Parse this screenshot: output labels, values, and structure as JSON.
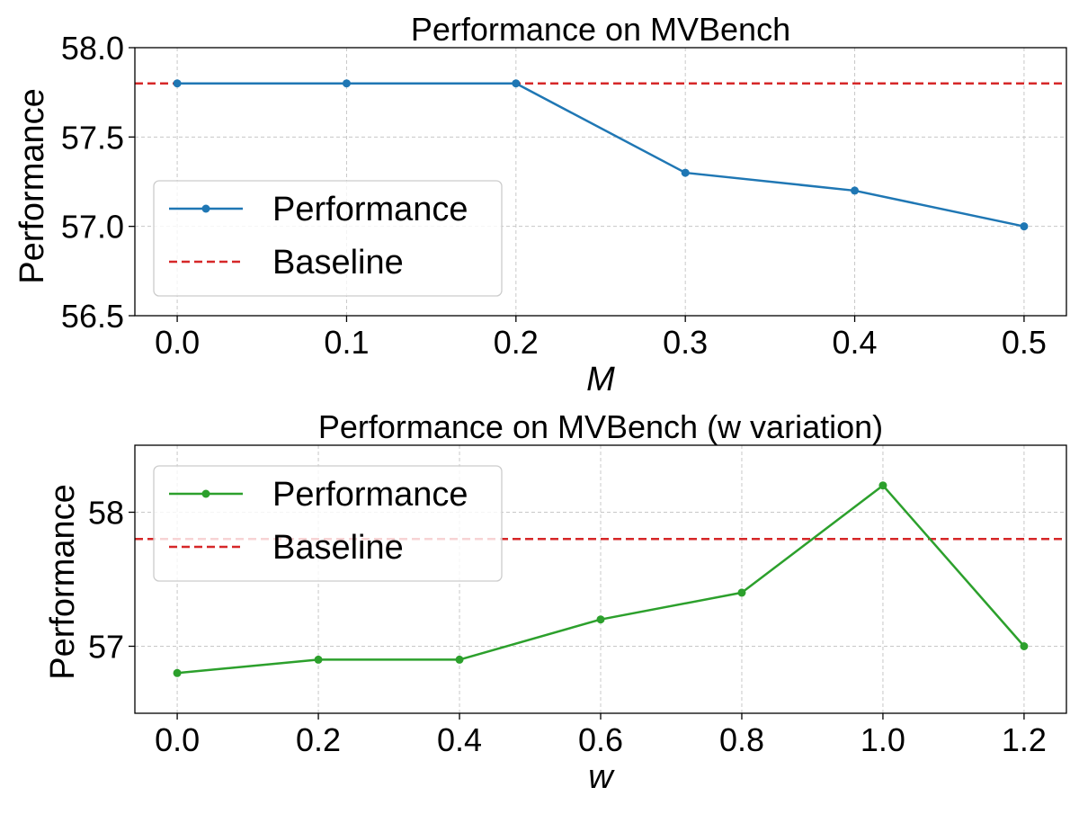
{
  "chart_data": [
    {
      "type": "line",
      "title": "Performance on MVBench",
      "xlabel": "M",
      "ylabel": "Performance",
      "x": [
        0.0,
        0.1,
        0.2,
        0.3,
        0.4,
        0.5
      ],
      "x_tick_labels": [
        "0.0",
        "0.1",
        "0.2",
        "0.3",
        "0.4",
        "0.5"
      ],
      "xlim": [
        -0.025,
        0.525
      ],
      "ylim": [
        56.5,
        58.0
      ],
      "y_ticks": [
        56.5,
        57.0,
        57.5,
        58.0
      ],
      "y_tick_labels": [
        "56.5",
        "57.0",
        "57.5",
        "58.0"
      ],
      "grid": true,
      "legend_position": "center-left",
      "series": [
        {
          "name": "Performance",
          "values": [
            57.8,
            57.8,
            57.8,
            57.3,
            57.2,
            57.0
          ],
          "color": "#1f77b4",
          "style": "solid-marker"
        }
      ],
      "baseline": {
        "name": "Baseline",
        "value": 57.8,
        "color": "#d62728",
        "style": "dashed"
      }
    },
    {
      "type": "line",
      "title": "Performance on MVBench (w variation)",
      "xlabel": "w",
      "ylabel": "Performance",
      "x": [
        0.0,
        0.2,
        0.4,
        0.6,
        0.8,
        1.0,
        1.2
      ],
      "x_tick_labels": [
        "0.0",
        "0.2",
        "0.4",
        "0.6",
        "0.8",
        "1.0",
        "1.2"
      ],
      "xlim": [
        -0.06,
        1.26
      ],
      "ylim": [
        56.5,
        58.5
      ],
      "y_ticks": [
        57,
        58
      ],
      "y_tick_labels": [
        "57",
        "58"
      ],
      "grid": true,
      "legend_position": "top-left",
      "series": [
        {
          "name": "Performance",
          "values": [
            56.8,
            56.9,
            56.9,
            57.2,
            57.4,
            58.2,
            57.0
          ],
          "color": "#2ca02c",
          "style": "solid-marker"
        }
      ],
      "baseline": {
        "name": "Baseline",
        "value": 57.8,
        "color": "#d62728",
        "style": "dashed"
      }
    }
  ]
}
